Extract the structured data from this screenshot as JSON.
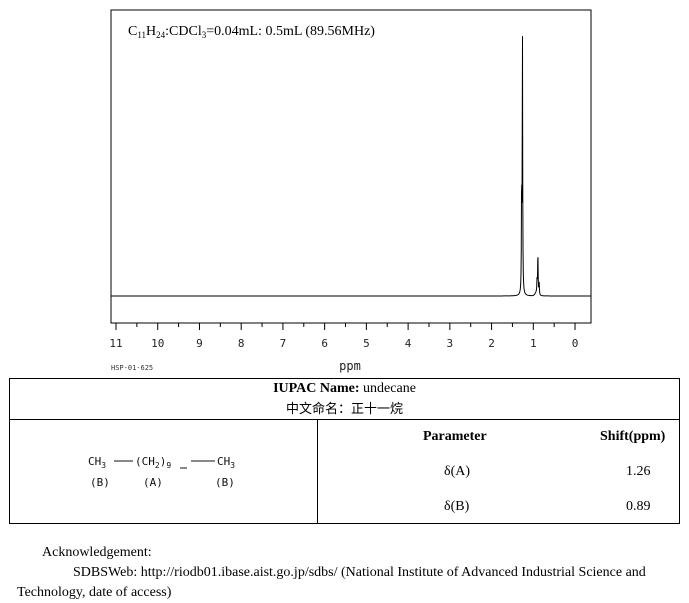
{
  "chart_data": {
    "type": "line",
    "annotation": "C11H24:CDCl3=0.04mL: 0.5mL (89.56MHz)",
    "xlabel": "ppm",
    "x_ticks": [
      11,
      10,
      9,
      8,
      7,
      6,
      5,
      4,
      3,
      2,
      1,
      0
    ],
    "xlim": [
      11.0,
      -0.35
    ],
    "x_reversed": true,
    "grid": false,
    "peaks": [
      {
        "shift": 1.26,
        "relative_height": 1.0
      },
      {
        "shift": 1.28,
        "relative_height": 0.4
      },
      {
        "shift": 0.89,
        "relative_height": 0.16
      },
      {
        "shift": 0.91,
        "relative_height": 0.05
      },
      {
        "shift": 0.86,
        "relative_height": 0.05
      }
    ],
    "code": "HSP-01-625"
  },
  "table": {
    "iupac_label": "IUPAC Name:",
    "iupac_name": "undecane",
    "chinese_name": "中文命名：正十一烷",
    "structure": {
      "left_group": "CH",
      "left_sub": "3",
      "mid_group": "(CH",
      "mid_sub": "2",
      "mid_close": ")",
      "mid_count": "9",
      "right_group": "CH",
      "right_sub": "3",
      "label_left": "(B)",
      "label_mid": "(A)",
      "label_right": "(B)"
    },
    "parameter_header": "Parameter",
    "shift_header": "Shift(ppm)",
    "rows": [
      {
        "param": "δ(A)",
        "shift": "1.26"
      },
      {
        "param": "δ(B)",
        "shift": "0.89"
      }
    ]
  },
  "acknowledgement": {
    "title": "Acknowledgement:",
    "body": "SDBSWeb: http://riodb01.ibase.aist.go.jp/sdbs/ (National Institute of Advanced Industrial Science and Technology, date of access)"
  }
}
